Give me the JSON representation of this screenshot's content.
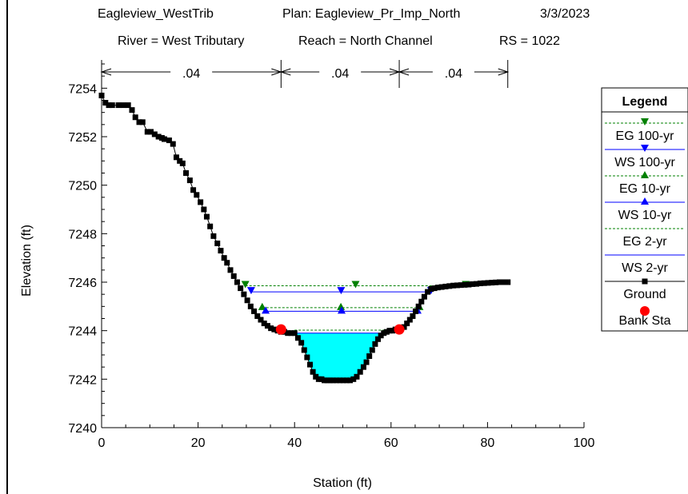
{
  "header": {
    "project": "Eagleview_WestTrib",
    "plan": "Plan: Eagleview_Pr_Imp_North",
    "date": "3/3/2023",
    "river": "River = West Tributary",
    "reach": "Reach = North Channel",
    "rs": "RS = 1022"
  },
  "chart_data": {
    "type": "line",
    "xlabel": "Station (ft)",
    "ylabel": "Elevation (ft)",
    "xlim": [
      0,
      100
    ],
    "ylim": [
      7240,
      7255
    ],
    "x_ticks": [
      0,
      20,
      40,
      60,
      80,
      100
    ],
    "y_ticks": [
      7240,
      7242,
      7244,
      7246,
      7248,
      7250,
      7252,
      7254
    ],
    "mannings_n": [
      {
        "from": 0,
        "to": 37.2,
        "label": ".04"
      },
      {
        "from": 37.2,
        "to": 61.7,
        "label": ".04"
      },
      {
        "from": 61.7,
        "to": 84.2,
        "label": ".04"
      }
    ],
    "ground": {
      "name": "Ground",
      "color": "#000000",
      "x": [
        0,
        0.8,
        1.5,
        2.2,
        3.5,
        4.5,
        5.5,
        6.3,
        7.0,
        7.8,
        8.5,
        9.5,
        10.2,
        11.0,
        11.8,
        12.5,
        13.0,
        14.0,
        14.8,
        15.5,
        16.2,
        16.8,
        17.5,
        18.3,
        19.0,
        19.7,
        20.5,
        21.2,
        21.8,
        22.5,
        23.2,
        24.0,
        24.7,
        25.4,
        26.0,
        26.7,
        27.4,
        28.1,
        28.8,
        29.5,
        30.2,
        30.9,
        31.6,
        32.3,
        33.0,
        33.7,
        34.4,
        35.1,
        35.8,
        36.5,
        37.2,
        37.9,
        38.6,
        39.3,
        40.0,
        40.7,
        41.4,
        42.0,
        42.6,
        43.2,
        43.8,
        44.4,
        45.0,
        45.6,
        46.2,
        46.8,
        47.4,
        48.0,
        48.7,
        49.4,
        50.1,
        50.8,
        51.5,
        52.2,
        52.9,
        53.6,
        54.3,
        54.9,
        55.5,
        56.1,
        56.7,
        57.3,
        57.9,
        58.5,
        59.1,
        59.7,
        60.3,
        60.9,
        61.5,
        62.1,
        62.7,
        63.3,
        63.9,
        64.5,
        65.1,
        65.7,
        66.3,
        66.9,
        67.6,
        68.3,
        69.0,
        69.7,
        70.5,
        71.3,
        72.1,
        72.9,
        73.7,
        74.5,
        75.3,
        76.1,
        76.9,
        77.7,
        78.5,
        79.3,
        80.1,
        80.9,
        81.7,
        82.5,
        83.3,
        84.2
      ],
      "y": [
        7253.7,
        7253.4,
        7253.3,
        7253.3,
        7253.3,
        7253.3,
        7253.3,
        7253.1,
        7252.8,
        7252.6,
        7252.6,
        7252.2,
        7252.2,
        7252.1,
        7252.0,
        7251.95,
        7251.9,
        7251.85,
        7251.7,
        7251.15,
        7251.0,
        7250.9,
        7250.5,
        7250.2,
        7249.8,
        7249.6,
        7249.3,
        7249.0,
        7248.7,
        7248.3,
        7247.9,
        7247.6,
        7247.3,
        7247.0,
        7246.8,
        7246.5,
        7246.25,
        7246.0,
        7245.75,
        7245.5,
        7245.25,
        7245.0,
        7244.8,
        7244.6,
        7244.45,
        7244.3,
        7244.2,
        7244.1,
        7244.05,
        7244.0,
        7243.95,
        7243.95,
        7243.9,
        7243.9,
        7243.9,
        7243.7,
        7243.5,
        7243.2,
        7242.9,
        7242.6,
        7242.3,
        7242.1,
        7242.0,
        7242.0,
        7241.95,
        7241.95,
        7241.95,
        7241.95,
        7241.95,
        7241.95,
        7241.95,
        7241.95,
        7241.95,
        7242.0,
        7242.1,
        7242.3,
        7242.5,
        7242.7,
        7242.95,
        7243.2,
        7243.45,
        7243.65,
        7243.8,
        7243.9,
        7243.95,
        7244.0,
        7244.0,
        7244.05,
        7244.05,
        7244.1,
        7244.15,
        7244.3,
        7244.45,
        7244.6,
        7244.8,
        7245.0,
        7245.2,
        7245.4,
        7245.6,
        7245.72,
        7245.75,
        7245.78,
        7245.8,
        7245.82,
        7245.84,
        7245.86,
        7245.87,
        7245.88,
        7245.89,
        7245.9,
        7245.92,
        7245.93,
        7245.95,
        7245.96,
        7245.97,
        7245.98,
        7245.99,
        7246.0,
        7246.0,
        7246.0
      ]
    },
    "water_surfaces": [
      {
        "name": "EG 100-yr",
        "color": "#008000",
        "dashed": true,
        "marker": "triangle-down",
        "elevation": 7245.85,
        "x": [
          29.8,
          75.5
        ]
      },
      {
        "name": "WS 100-yr",
        "color": "#0000ff",
        "dashed": false,
        "marker": "triangle-down",
        "elevation": 7245.6,
        "x": [
          31.0,
          68.3
        ]
      },
      {
        "name": "EG 10-yr",
        "color": "#008000",
        "dashed": true,
        "marker": "triangle-up",
        "elevation": 7244.95,
        "x": [
          33.3,
          65.9
        ]
      },
      {
        "name": "WS 10-yr",
        "color": "#0000ff",
        "dashed": false,
        "marker": "triangle-up",
        "elevation": 7244.8,
        "x": [
          34.0,
          65.5
        ]
      },
      {
        "name": "EG 2-yr",
        "color": "#008000",
        "dashed": true,
        "marker": "none",
        "elevation": 7244.02,
        "x": [
          40.0,
          58.8
        ]
      },
      {
        "name": "WS 2-yr",
        "color": "#0000ff",
        "dashed": false,
        "marker": "none",
        "elevation": 7243.9,
        "x": [
          40.5,
          58.2
        ]
      }
    ],
    "bank_stations": {
      "name": "Bank Sta",
      "color": "#ff0000",
      "points": [
        [
          37.2,
          7244.05
        ],
        [
          61.7,
          7244.05
        ]
      ]
    },
    "water_fill": "#00ffff",
    "legend": {
      "title": "Legend",
      "placement": "right",
      "entries": [
        "EG 100-yr",
        "WS 100-yr",
        "EG 10-yr",
        "WS 10-yr",
        "EG 2-yr",
        "WS 2-yr",
        "Ground",
        "Bank Sta"
      ]
    }
  }
}
